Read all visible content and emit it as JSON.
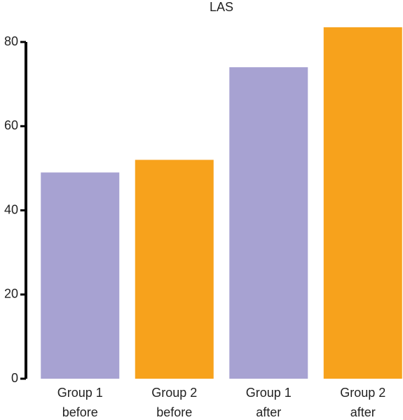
{
  "chart_data": {
    "type": "bar",
    "title": "LAS",
    "categories": [
      [
        "Group 1",
        "before"
      ],
      [
        "Group 2",
        "before"
      ],
      [
        "Group 1",
        "after"
      ],
      [
        "Group 2",
        "after"
      ]
    ],
    "values": [
      49,
      52,
      74,
      83.5
    ],
    "colors": [
      "#a7a2d2",
      "#f7a21c",
      "#a7a2d2",
      "#f7a21c"
    ],
    "ylim": [
      0,
      80
    ],
    "yticks": [
      0,
      20,
      40,
      60,
      80
    ],
    "grid": false
  }
}
